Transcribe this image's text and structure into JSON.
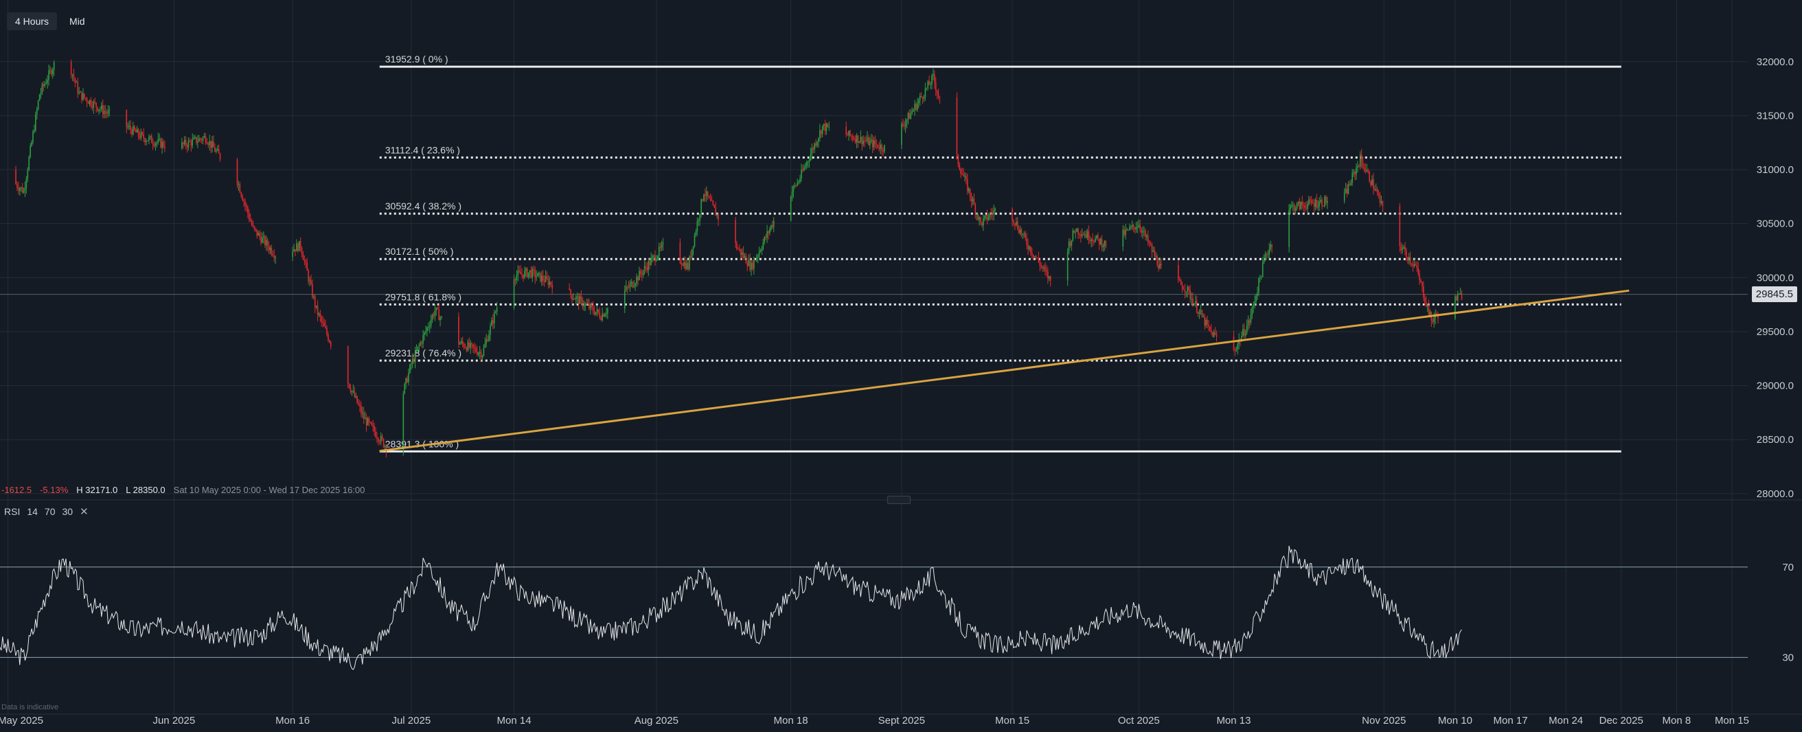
{
  "toolbar": {
    "timeframe": "4 Hours",
    "price_type": "Mid"
  },
  "info": {
    "change": "-1612.5",
    "change_pct": "-5.13%",
    "high": "H 32171.0",
    "low": "L 28350.0",
    "range": "Sat 10 May 2025 0:00 - Wed 17 Dec 2025 16:00"
  },
  "rsi_legend": {
    "name": "RSI",
    "period": "14",
    "upper": "70",
    "lower": "30",
    "close_icon": "close-icon"
  },
  "disclaimer": "Data is indicative",
  "last_price_label": "29845.5",
  "colors": {
    "background": "#151b24",
    "up": "#2ea043",
    "down": "#e5282d",
    "trendline": "#d9a441",
    "grid": "#252c36",
    "text": "#c8ccd2"
  },
  "chart_data": [
    {
      "type": "candlestick",
      "title": "",
      "ylim": [
        27980,
        32380
      ],
      "xlim": [
        "2025-05-10",
        "2025-12-17"
      ],
      "y_ticks": [
        "32000.0",
        "31500.0",
        "31000.0",
        "30500.0",
        "30000.0",
        "29500.0",
        "29000.0",
        "28500.0",
        "28000.0"
      ],
      "y_tick_values": [
        32000,
        31500,
        31000,
        30500,
        30000,
        29500,
        29000,
        28500,
        28000
      ],
      "x_ticks": [
        {
          "label": "May 2025",
          "date": "2025-05-11"
        },
        {
          "label": "Jun 2025",
          "date": "2025-06-01"
        },
        {
          "label": "Mon 16",
          "date": "2025-06-16"
        },
        {
          "label": "Jul 2025",
          "date": "2025-07-01"
        },
        {
          "label": "Mon 14",
          "date": "2025-07-14"
        },
        {
          "label": "Aug 2025",
          "date": "2025-08-01"
        },
        {
          "label": "Mon 18",
          "date": "2025-08-18"
        },
        {
          "label": "Sept 2025",
          "date": "2025-09-01"
        },
        {
          "label": "Mon 15",
          "date": "2025-09-15"
        },
        {
          "label": "Oct 2025",
          "date": "2025-10-01"
        },
        {
          "label": "Mon 13",
          "date": "2025-10-13"
        },
        {
          "label": "Nov 2025",
          "date": "2025-11-01"
        },
        {
          "label": "Mon 10",
          "date": "2025-11-10"
        },
        {
          "label": "Mon 17",
          "date": "2025-11-17"
        },
        {
          "label": "Mon 24",
          "date": "2025-11-24"
        },
        {
          "label": "Dec 2025",
          "date": "2025-12-01"
        },
        {
          "label": "Mon 8",
          "date": "2025-12-08"
        },
        {
          "label": "Mon 15",
          "date": "2025-12-15"
        }
      ],
      "price_path": [
        [
          "2025-05-10",
          31000
        ],
        [
          "2025-05-13",
          30800
        ],
        [
          "2025-05-15",
          31700
        ],
        [
          "2025-05-18",
          32150
        ],
        [
          "2025-05-20",
          31700
        ],
        [
          "2025-05-24",
          31500
        ],
        [
          "2025-05-28",
          31300
        ],
        [
          "2025-06-01",
          31200
        ],
        [
          "2025-06-05",
          31300
        ],
        [
          "2025-06-09",
          30900
        ],
        [
          "2025-06-11",
          30450
        ],
        [
          "2025-06-14",
          30200
        ],
        [
          "2025-06-17",
          30300
        ],
        [
          "2025-06-19",
          29700
        ],
        [
          "2025-06-22",
          29200
        ],
        [
          "2025-06-25",
          28700
        ],
        [
          "2025-06-28",
          28420
        ],
        [
          "2025-07-01",
          29200
        ],
        [
          "2025-07-04",
          29700
        ],
        [
          "2025-07-07",
          29400
        ],
        [
          "2025-07-10",
          29300
        ],
        [
          "2025-07-13",
          30000
        ],
        [
          "2025-07-16",
          30050
        ],
        [
          "2025-07-20",
          29900
        ],
        [
          "2025-07-25",
          29650
        ],
        [
          "2025-07-29",
          29950
        ],
        [
          "2025-08-02",
          30300
        ],
        [
          "2025-08-05",
          30100
        ],
        [
          "2025-08-07",
          30800
        ],
        [
          "2025-08-10",
          30400
        ],
        [
          "2025-08-13",
          30100
        ],
        [
          "2025-08-16",
          30550
        ],
        [
          "2025-08-19",
          30900
        ],
        [
          "2025-08-22",
          31400
        ],
        [
          "2025-08-26",
          31300
        ],
        [
          "2025-08-30",
          31200
        ],
        [
          "2025-09-02",
          31500
        ],
        [
          "2025-09-05",
          31850
        ],
        [
          "2025-09-08",
          31100
        ],
        [
          "2025-09-11",
          30500
        ],
        [
          "2025-09-14",
          30700
        ],
        [
          "2025-09-17",
          30300
        ],
        [
          "2025-09-20",
          29950
        ],
        [
          "2025-09-23",
          30450
        ],
        [
          "2025-09-27",
          30300
        ],
        [
          "2025-10-01",
          30500
        ],
        [
          "2025-10-04",
          30050
        ],
        [
          "2025-10-07",
          29900
        ],
        [
          "2025-10-10",
          29500
        ],
        [
          "2025-10-13",
          29320
        ],
        [
          "2025-10-15",
          29600
        ],
        [
          "2025-10-17",
          30200
        ],
        [
          "2025-10-20",
          30650
        ],
        [
          "2025-10-24",
          30700
        ],
        [
          "2025-10-27",
          30750
        ],
        [
          "2025-10-29",
          31100
        ],
        [
          "2025-10-31",
          30800
        ],
        [
          "2025-11-02",
          30400
        ],
        [
          "2025-11-05",
          30100
        ],
        [
          "2025-11-07",
          29600
        ],
        [
          "2025-11-09",
          29750
        ],
        [
          "2025-11-11",
          29845
        ]
      ],
      "fibonacci_levels": [
        {
          "label": "31952.9 ( 0% )",
          "value": 31952.9,
          "style": "solid"
        },
        {
          "label": "31112.4 ( 23.6% )",
          "value": 31112.4,
          "style": "dotted"
        },
        {
          "label": "30592.4 ( 38.2% )",
          "value": 30592.4,
          "style": "dotted"
        },
        {
          "label": "30172.1 ( 50% )",
          "value": 30172.1,
          "style": "dotted"
        },
        {
          "label": "29751.8 ( 61.8% )",
          "value": 29751.8,
          "style": "dotted"
        },
        {
          "label": "29231.8 ( 76.4% )",
          "value": 29231.8,
          "style": "dotted"
        },
        {
          "label": "28391.3 ( 100% )",
          "value": 28391.3,
          "style": "solid"
        }
      ],
      "fib_start_date": "2025-06-27",
      "fib_end_date": "2025-12-01",
      "trendline": {
        "x": [
          "2025-06-27",
          "2025-12-02"
        ],
        "y": [
          28395,
          29880
        ]
      },
      "last_price": 29845.5
    },
    {
      "type": "line",
      "title": "",
      "ylim": [
        14,
        90
      ],
      "y_ticks": [
        "70",
        "30"
      ],
      "y_tick_values": [
        70,
        30
      ],
      "bands": [
        70,
        30
      ],
      "rsi_path": [
        [
          "2025-05-10",
          36
        ],
        [
          "2025-05-13",
          30
        ],
        [
          "2025-05-16",
          60
        ],
        [
          "2025-05-18",
          73
        ],
        [
          "2025-05-22",
          52
        ],
        [
          "2025-05-27",
          42
        ],
        [
          "2025-06-02",
          45
        ],
        [
          "2025-06-07",
          38
        ],
        [
          "2025-06-12",
          40
        ],
        [
          "2025-06-15",
          50
        ],
        [
          "2025-06-19",
          35
        ],
        [
          "2025-06-24",
          28
        ],
        [
          "2025-06-27",
          38
        ],
        [
          "2025-07-01",
          60
        ],
        [
          "2025-07-03",
          73
        ],
        [
          "2025-07-06",
          52
        ],
        [
          "2025-07-09",
          45
        ],
        [
          "2025-07-12",
          70
        ],
        [
          "2025-07-15",
          58
        ],
        [
          "2025-07-20",
          52
        ],
        [
          "2025-07-25",
          40
        ],
        [
          "2025-07-30",
          45
        ],
        [
          "2025-08-03",
          55
        ],
        [
          "2025-08-07",
          68
        ],
        [
          "2025-08-10",
          48
        ],
        [
          "2025-08-14",
          40
        ],
        [
          "2025-08-18",
          58
        ],
        [
          "2025-08-22",
          70
        ],
        [
          "2025-08-27",
          60
        ],
        [
          "2025-09-01",
          55
        ],
        [
          "2025-09-05",
          66
        ],
        [
          "2025-09-09",
          42
        ],
        [
          "2025-09-13",
          35
        ],
        [
          "2025-09-17",
          38
        ],
        [
          "2025-09-21",
          35
        ],
        [
          "2025-09-25",
          45
        ],
        [
          "2025-09-30",
          52
        ],
        [
          "2025-10-04",
          44
        ],
        [
          "2025-10-08",
          38
        ],
        [
          "2025-10-12",
          32
        ],
        [
          "2025-10-15",
          40
        ],
        [
          "2025-10-18",
          62
        ],
        [
          "2025-10-20",
          75
        ],
        [
          "2025-10-24",
          65
        ],
        [
          "2025-10-28",
          72
        ],
        [
          "2025-11-01",
          55
        ],
        [
          "2025-11-04",
          44
        ],
        [
          "2025-11-08",
          30
        ],
        [
          "2025-11-11",
          40
        ]
      ]
    }
  ]
}
